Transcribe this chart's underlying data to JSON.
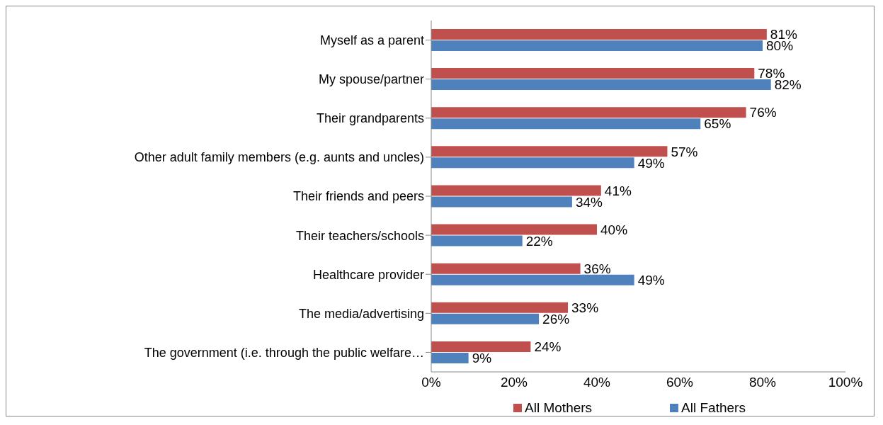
{
  "chart_data": {
    "type": "bar",
    "orientation": "horizontal",
    "categories": [
      "Myself as a parent",
      "My spouse/partner",
      "Their grandparents",
      "Other adult family members (e.g. aunts and uncles)",
      "Their friends and peers",
      "Their teachers/schools",
      "Healthcare provider",
      "The media/advertising",
      "The government (i.e. through the public welfare…"
    ],
    "series": [
      {
        "name": "All Mothers",
        "color": "#c0504d",
        "values": [
          81,
          78,
          76,
          57,
          41,
          40,
          36,
          33,
          24
        ],
        "value_labels": [
          "81%",
          "78%",
          "76%",
          "57%",
          "41%",
          "40%",
          "36%",
          "33%",
          "24%"
        ]
      },
      {
        "name": "All Fathers",
        "color": "#4f81bd",
        "values": [
          80,
          82,
          65,
          49,
          34,
          22,
          49,
          26,
          9
        ],
        "value_labels": [
          "80%",
          "82%",
          "65%",
          "49%",
          "34%",
          "22%",
          "49%",
          "26%",
          "9%"
        ]
      }
    ],
    "xlim": [
      0,
      100
    ],
    "xticks": [
      {
        "value": 0,
        "label": "0%"
      },
      {
        "value": 20,
        "label": "20%"
      },
      {
        "value": 40,
        "label": "40%"
      },
      {
        "value": 60,
        "label": "60%"
      },
      {
        "value": 80,
        "label": "80%"
      },
      {
        "value": 100,
        "label": "100%"
      }
    ],
    "legend": "bottom"
  }
}
